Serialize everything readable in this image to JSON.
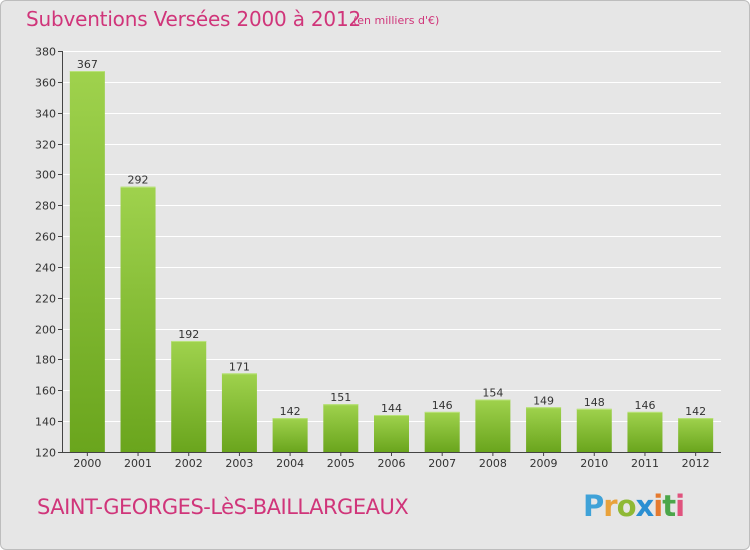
{
  "title": "Subventions Versées 2000 à 2012",
  "subtitle": "(en milliers d'€)",
  "commune": "SAINT-GEORGES-LèS-BAILLARGEAUX",
  "logo": {
    "letters": [
      "P",
      "r",
      "o",
      "x",
      "i",
      "t",
      "i"
    ]
  },
  "colors": {
    "bar_light": "#9fd24d",
    "bar_dark": "#6aa51d",
    "title": "#d0357a",
    "plot_background": "#e6e6e6",
    "grid": "#ffffff"
  },
  "chart_data": {
    "type": "bar",
    "title": "Subventions Versées 2000 à 2012",
    "subtitle": "(en milliers d'€)",
    "categories": [
      "2000",
      "2001",
      "2002",
      "2003",
      "2004",
      "2005",
      "2006",
      "2007",
      "2008",
      "2009",
      "2010",
      "2011",
      "2012"
    ],
    "values": [
      367,
      292,
      192,
      171,
      142,
      151,
      144,
      146,
      154,
      149,
      148,
      146,
      142
    ],
    "ylim": [
      120,
      380
    ],
    "yticks": [
      120,
      140,
      160,
      180,
      200,
      220,
      240,
      260,
      280,
      300,
      320,
      340,
      360,
      380
    ],
    "xlabel": "",
    "ylabel": "",
    "grid": true,
    "legend": "none"
  }
}
